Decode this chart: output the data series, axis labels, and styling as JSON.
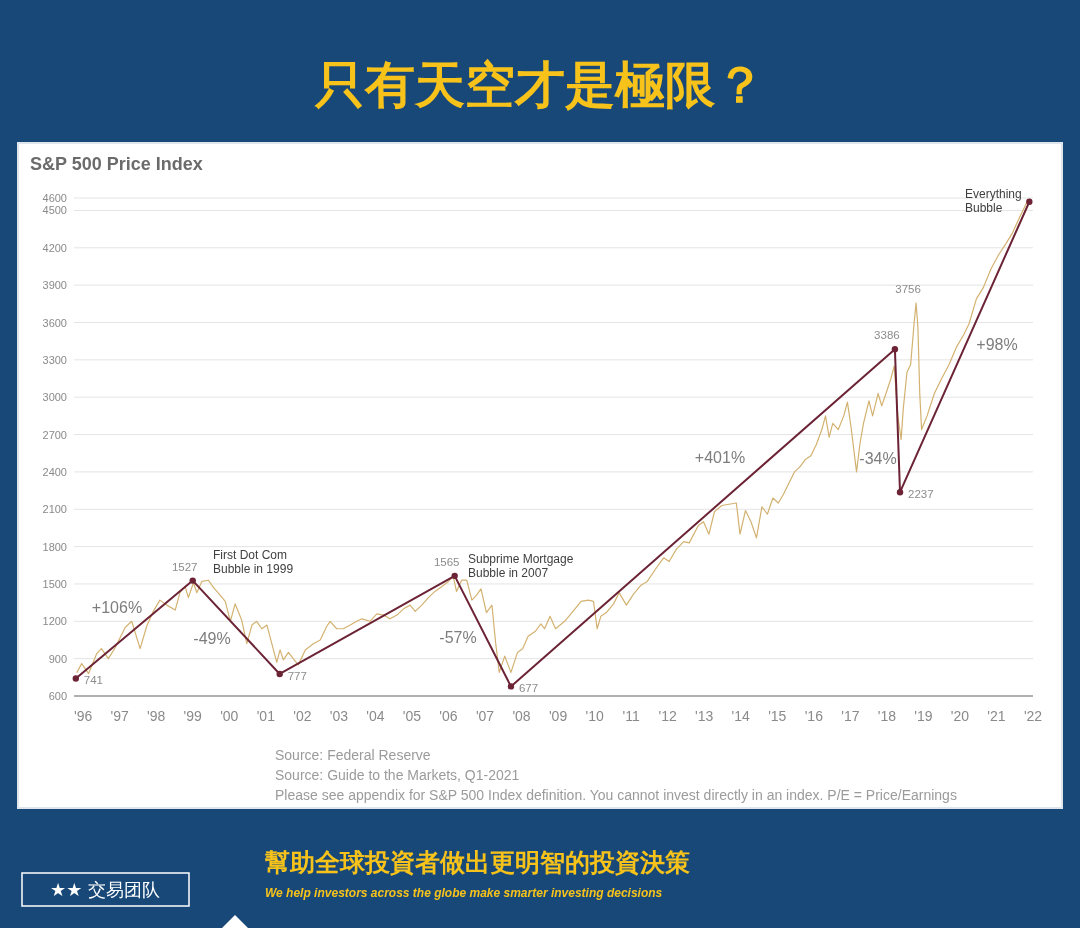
{
  "chart_data": {
    "type": "line",
    "title": "只有天空才是極限？",
    "subtitle": "S&P 500 Price Index",
    "xlim": [
      1995.75,
      2022
    ],
    "xticks": [
      {
        "value": 1996,
        "label": "'96"
      },
      {
        "value": 1997,
        "label": "'97"
      },
      {
        "value": 1998,
        "label": "'98"
      },
      {
        "value": 1999,
        "label": "'99"
      },
      {
        "value": 2000,
        "label": "'00"
      },
      {
        "value": 2001,
        "label": "'01"
      },
      {
        "value": 2002,
        "label": "'02"
      },
      {
        "value": 2003,
        "label": "'03"
      },
      {
        "value": 2004,
        "label": "'04"
      },
      {
        "value": 2005,
        "label": "'05"
      },
      {
        "value": 2006,
        "label": "'06"
      },
      {
        "value": 2007,
        "label": "'07"
      },
      {
        "value": 2008,
        "label": "'08"
      },
      {
        "value": 2009,
        "label": "'09"
      },
      {
        "value": 2010,
        "label": "'10"
      },
      {
        "value": 2011,
        "label": "'11"
      },
      {
        "value": 2012,
        "label": "'12"
      },
      {
        "value": 2013,
        "label": "'13"
      },
      {
        "value": 2014,
        "label": "'14"
      },
      {
        "value": 2015,
        "label": "'15"
      },
      {
        "value": 2016,
        "label": "'16"
      },
      {
        "value": 2017,
        "label": "'17"
      },
      {
        "value": 2018,
        "label": "'18"
      },
      {
        "value": 2019,
        "label": "'19"
      },
      {
        "value": 2020,
        "label": "'20"
      },
      {
        "value": 2021,
        "label": "'21"
      },
      {
        "value": 2022,
        "label": "'22"
      }
    ],
    "ylim": [
      600,
      4600
    ],
    "yticks": [
      600,
      900,
      1200,
      1500,
      1800,
      2100,
      2400,
      2700,
      3000,
      3300,
      3600,
      3900,
      4200,
      4500,
      4600
    ],
    "grid": "y",
    "series": [
      {
        "color": "#d3b271",
        "x": [
          1995.83,
          1995.96,
          1996.15,
          1996.37,
          1996.5,
          1996.69,
          1996.88,
          1997.15,
          1997.33,
          1997.56,
          1997.74,
          1997.92,
          1998.1,
          1998.29,
          1998.52,
          1998.65,
          1998.79,
          1998.88,
          1999.02,
          1999.11,
          1999.25,
          1999.43,
          1999.57,
          1999.75,
          1999.89,
          2000.03,
          2000.16,
          2000.34,
          2000.48,
          2000.62,
          2000.75,
          2000.89,
          2001.03,
          2001.21,
          2001.3,
          2001.39,
          2001.48,
          2001.62,
          2001.75,
          2001.89,
          2002.08,
          2002.3,
          2002.49,
          2002.67,
          2002.76,
          2002.94,
          2003.12,
          2003.31,
          2003.49,
          2003.63,
          2003.85,
          2004.04,
          2004.22,
          2004.4,
          2004.59,
          2004.77,
          2004.95,
          2005.09,
          2005.27,
          2005.45,
          2005.63,
          2005.82,
          2006.0,
          2006.13,
          2006.22,
          2006.36,
          2006.5,
          2006.64,
          2006.77,
          2006.89,
          2007.04,
          2007.19,
          2007.29,
          2007.39,
          2007.54,
          2007.71,
          2007.89,
          2008.03,
          2008.18,
          2008.38,
          2008.53,
          2008.63,
          2008.78,
          2008.93,
          2009.18,
          2009.38,
          2009.63,
          2009.83,
          2009.97,
          2010.07,
          2010.17,
          2010.32,
          2010.52,
          2010.67,
          2010.87,
          2011.07,
          2011.27,
          2011.44,
          2011.74,
          2011.89,
          2012.04,
          2012.24,
          2012.44,
          2012.59,
          2012.84,
          2012.98,
          2013.13,
          2013.28,
          2013.48,
          2013.68,
          2013.88,
          2013.98,
          2014.13,
          2014.28,
          2014.43,
          2014.58,
          2014.73,
          2014.88,
          2015.03,
          2015.17,
          2015.32,
          2015.47,
          2015.62,
          2015.77,
          2015.92,
          2016.07,
          2016.22,
          2016.32,
          2016.42,
          2016.52,
          2016.67,
          2016.82,
          2016.92,
          2017.02,
          2017.17,
          2017.26,
          2017.36,
          2017.51,
          2017.61,
          2017.76,
          2017.86,
          2018.01,
          2018.11,
          2018.2,
          2018.3,
          2018.39,
          2018.45,
          2018.55,
          2018.65,
          2018.75,
          2018.8,
          2018.85,
          2018.9,
          2018.95,
          2019.1,
          2019.3,
          2019.5,
          2019.7,
          2019.9,
          2020.1,
          2020.25,
          2020.45,
          2020.64,
          2020.85,
          2021.05,
          2021.25,
          2021.44,
          2021.64,
          2021.84
        ],
        "values": [
          790,
          860,
          780,
          940,
          980,
          900,
          990,
          1150,
          1200,
          980,
          1160,
          1280,
          1370,
          1330,
          1290,
          1430,
          1480,
          1390,
          1510,
          1430,
          1520,
          1530,
          1470,
          1410,
          1360,
          1200,
          1340,
          1210,
          1020,
          1170,
          1200,
          1140,
          1170,
          970,
          870,
          970,
          890,
          950,
          900,
          850,
          970,
          1020,
          1050,
          1160,
          1200,
          1140,
          1140,
          1170,
          1200,
          1220,
          1200,
          1260,
          1250,
          1220,
          1250,
          1300,
          1330,
          1280,
          1330,
          1390,
          1440,
          1480,
          1520,
          1560,
          1440,
          1530,
          1530,
          1370,
          1410,
          1460,
          1270,
          1330,
          1030,
          790,
          920,
          790,
          950,
          980,
          1080,
          1120,
          1180,
          1140,
          1240,
          1140,
          1200,
          1270,
          1360,
          1370,
          1360,
          1140,
          1240,
          1270,
          1340,
          1430,
          1330,
          1420,
          1490,
          1520,
          1650,
          1710,
          1680,
          1780,
          1840,
          1830,
          1970,
          2000,
          1900,
          2080,
          2130,
          2140,
          2150,
          1900,
          2090,
          2000,
          1870,
          2120,
          2060,
          2190,
          2150,
          2220,
          2310,
          2400,
          2440,
          2500,
          2530,
          2620,
          2740,
          2850,
          2680,
          2790,
          2740,
          2850,
          2960,
          2760,
          2400,
          2620,
          2790,
          2970,
          2850,
          3030,
          2930,
          3060,
          3150,
          3250,
          2850,
          2660,
          2910,
          3200,
          3260,
          3610,
          3756,
          3560,
          3030,
          2740,
          2850,
          3030,
          3150,
          3260,
          3400,
          3500,
          3590,
          3790,
          3880,
          4030,
          4140,
          4230,
          4320,
          4450,
          4570
        ],
        "value_labels": [
          null,
          null,
          null,
          null,
          null,
          null,
          null,
          null,
          null,
          null,
          null,
          null,
          null,
          null,
          null,
          null,
          null,
          null,
          null,
          null,
          null,
          null,
          null,
          null,
          null,
          null,
          null,
          null,
          null,
          null,
          null,
          null,
          null,
          null,
          null,
          null,
          null,
          null,
          null,
          null,
          null,
          null,
          null,
          null,
          null,
          null,
          null,
          null,
          null,
          null,
          null,
          null,
          null,
          null,
          null,
          null,
          null,
          null,
          null,
          null,
          null,
          null,
          null,
          null,
          null,
          null,
          null,
          null,
          null,
          null,
          null,
          null,
          null,
          null,
          null,
          null,
          null,
          null,
          null,
          null,
          null,
          null,
          null,
          null,
          null,
          null,
          null,
          null,
          null,
          null,
          null,
          null,
          null,
          null,
          null,
          null,
          null,
          null,
          null,
          null,
          null,
          null,
          null,
          null,
          null,
          null,
          null,
          null,
          null,
          null,
          null,
          null,
          null,
          null,
          null,
          null,
          null,
          null,
          null,
          null,
          null,
          null,
          null,
          null,
          null,
          null,
          null,
          null,
          null,
          null,
          null,
          null,
          null,
          null,
          null,
          null,
          null,
          null,
          null,
          null,
          null,
          null,
          null,
          null,
          null,
          null,
          null,
          null,
          null,
          null,
          "3756",
          null,
          null,
          null,
          null,
          null,
          null,
          null,
          null,
          null,
          null,
          null,
          null,
          null,
          null,
          null,
          null,
          null,
          null
        ]
      },
      {
        "color": "#6b2335",
        "marker": "circle",
        "x": [
          1995.8,
          1999.0,
          2001.38,
          2006.17,
          2007.71,
          2018.22,
          2018.36,
          2021.9
        ],
        "values": [
          741,
          1527,
          777,
          1565,
          677,
          3386,
          2237,
          4570
        ],
        "value_labels": [
          "741",
          "1527",
          "777",
          "1565",
          "677",
          "3386",
          "2237",
          null
        ]
      }
    ],
    "annotations": [
      "Source: Federal Reserve",
      "Source: Guide to the Markets, Q1-2021",
      "Please see appendix for S&P 500 Index definition. You cannot invest directly in an index. P/E = Price/Earnings",
      "★★ 交易团队",
      "幫助全球投資者做出更明智的投資決策",
      "We help investors across the globe make smarter investing decisions",
      "+106%",
      "-49%",
      "-57%",
      "+401%",
      "-34%",
      "+98%",
      "First Dot Com\nBubble in 1999",
      "Subprime Mortgage\nBubble in 2007",
      "Everything\nBubble"
    ]
  }
}
